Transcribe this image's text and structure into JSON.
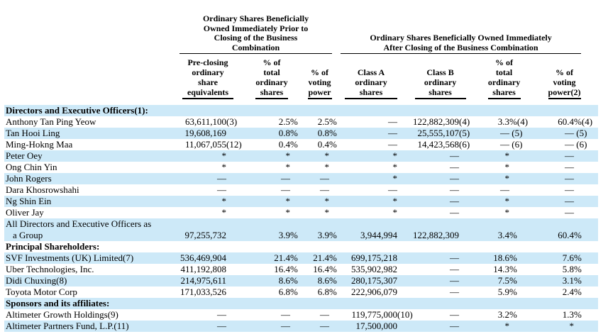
{
  "colors": {
    "row_shade": "#cde9f8",
    "text": "#000000",
    "rule": "#000000"
  },
  "table": {
    "groups": [
      {
        "title": "Ordinary Shares Beneficially\nOwned Immediately Prior to\nClosing of the Business\nCombination",
        "span": 3
      },
      {
        "title": "Ordinary Shares Beneficially Owned Immediately\nAfter Closing of the Business Combination",
        "span": 4
      }
    ],
    "columns": [
      {
        "id": "pre_share_equivalents",
        "label": "Pre-closing\nordinary\nshare\nequivalents"
      },
      {
        "id": "pre_pct_total_shares",
        "label": "% of\ntotal\nordinary\nshares"
      },
      {
        "id": "pre_pct_voting_power",
        "label": "% of\nvoting\npower"
      },
      {
        "id": "class_a_shares",
        "label": "Class A\nordinary\nshares"
      },
      {
        "id": "class_b_shares",
        "label": "Class B\nordinary\nshares"
      },
      {
        "id": "post_pct_total_shares",
        "label": "% of\ntotal\nordinary\nshares"
      },
      {
        "id": "post_pct_voting_power",
        "label": "% of\nvoting\npower(2)"
      }
    ],
    "rows": [
      {
        "type": "section",
        "shaded": true,
        "name": "Directors and Executive Officers(1):"
      },
      {
        "type": "data",
        "shaded": false,
        "name": "Anthony Tan Ping Yeow",
        "cells": [
          [
            "63,611,100",
            "(3)"
          ],
          [
            "2.5",
            "%"
          ],
          [
            "2.5",
            "%"
          ],
          [
            "—",
            ""
          ],
          [
            "122,882,309",
            "(4)"
          ],
          [
            "3.3",
            "%(4)"
          ],
          [
            "60.4",
            "%(4)"
          ]
        ]
      },
      {
        "type": "data",
        "shaded": true,
        "name": "Tan Hooi Ling",
        "cells": [
          [
            "19,608,169",
            ""
          ],
          [
            "0.8",
            "%"
          ],
          [
            "0.8",
            "%"
          ],
          [
            "—",
            ""
          ],
          [
            "25,555,107",
            "(5)"
          ],
          [
            "—",
            " (5)"
          ],
          [
            "—",
            " (5)"
          ]
        ]
      },
      {
        "type": "data",
        "shaded": false,
        "name": "Ming-Hokng Maa",
        "cells": [
          [
            "11,067,055",
            "(12)"
          ],
          [
            "0.4",
            "%"
          ],
          [
            "0.4",
            "%"
          ],
          [
            "—",
            ""
          ],
          [
            "14,423,568",
            "(6)"
          ],
          [
            "—",
            " (6)"
          ],
          [
            "—",
            " (6)"
          ]
        ]
      },
      {
        "type": "data",
        "shaded": true,
        "name": "Peter Oey",
        "cells": [
          [
            "*",
            ""
          ],
          [
            "*",
            ""
          ],
          [
            "*",
            ""
          ],
          [
            "*",
            ""
          ],
          [
            "—",
            ""
          ],
          [
            "*",
            ""
          ],
          [
            "—",
            ""
          ]
        ]
      },
      {
        "type": "data",
        "shaded": false,
        "name": "Ong Chin Yin",
        "cells": [
          [
            "*",
            ""
          ],
          [
            "*",
            ""
          ],
          [
            "*",
            ""
          ],
          [
            "*",
            ""
          ],
          [
            "—",
            ""
          ],
          [
            "*",
            ""
          ],
          [
            "—",
            ""
          ]
        ]
      },
      {
        "type": "data",
        "shaded": true,
        "name": "John Rogers",
        "cells": [
          [
            "—",
            ""
          ],
          [
            "—",
            ""
          ],
          [
            "—",
            ""
          ],
          [
            "*",
            ""
          ],
          [
            "—",
            ""
          ],
          [
            "*",
            ""
          ],
          [
            "—",
            ""
          ]
        ]
      },
      {
        "type": "data",
        "shaded": false,
        "name": "Dara Khosrowshahi",
        "cells": [
          [
            "—",
            ""
          ],
          [
            "—",
            ""
          ],
          [
            "—",
            ""
          ],
          [
            "—",
            ""
          ],
          [
            "—",
            ""
          ],
          [
            "—",
            ""
          ],
          [
            "—",
            ""
          ]
        ]
      },
      {
        "type": "data",
        "shaded": true,
        "name": "Ng Shin Ein",
        "cells": [
          [
            "*",
            ""
          ],
          [
            "*",
            ""
          ],
          [
            "*",
            ""
          ],
          [
            "*",
            ""
          ],
          [
            "—",
            ""
          ],
          [
            "*",
            ""
          ],
          [
            "—",
            ""
          ]
        ]
      },
      {
        "type": "data",
        "shaded": false,
        "name": "Oliver Jay",
        "cells": [
          [
            "*",
            ""
          ],
          [
            "*",
            ""
          ],
          [
            "*",
            ""
          ],
          [
            "*",
            ""
          ],
          [
            "—",
            ""
          ],
          [
            "*",
            ""
          ],
          [
            "—",
            ""
          ]
        ]
      },
      {
        "type": "data",
        "shaded": true,
        "name": "All Directors and Executive Officers as",
        "name2": "a Group",
        "cells": [
          [
            "97,255,732",
            ""
          ],
          [
            "3.9",
            "%"
          ],
          [
            "3.9",
            "%"
          ],
          [
            "3,944,994",
            ""
          ],
          [
            "122,882,309",
            ""
          ],
          [
            "3.4",
            "%"
          ],
          [
            "60.4",
            "%"
          ]
        ]
      },
      {
        "type": "section",
        "shaded": false,
        "name": "Principal Shareholders:"
      },
      {
        "type": "data",
        "shaded": true,
        "name": "SVF Investments (UK) Limited(7)",
        "cells": [
          [
            "536,469,904",
            ""
          ],
          [
            "21.4",
            "%"
          ],
          [
            "21.4",
            "%"
          ],
          [
            "699,175,218",
            ""
          ],
          [
            "—",
            ""
          ],
          [
            "18.6",
            "%"
          ],
          [
            "7.6",
            "%"
          ]
        ]
      },
      {
        "type": "data",
        "shaded": false,
        "name": "Uber Technologies, Inc.",
        "cells": [
          [
            "411,192,808",
            ""
          ],
          [
            "16.4",
            "%"
          ],
          [
            "16.4",
            "%"
          ],
          [
            "535,902,982",
            ""
          ],
          [
            "—",
            ""
          ],
          [
            "14.3",
            "%"
          ],
          [
            "5.8",
            "%"
          ]
        ]
      },
      {
        "type": "data",
        "shaded": true,
        "name": "Didi Chuxing(8)",
        "cells": [
          [
            "214,975,611",
            ""
          ],
          [
            "8.6",
            "%"
          ],
          [
            "8.6",
            "%"
          ],
          [
            "280,175,307",
            ""
          ],
          [
            "—",
            ""
          ],
          [
            "7.5",
            "%"
          ],
          [
            "3.1",
            "%"
          ]
        ]
      },
      {
        "type": "data",
        "shaded": false,
        "name": "Toyota Motor Corp",
        "cells": [
          [
            "171,033,526",
            ""
          ],
          [
            "6.8",
            "%"
          ],
          [
            "6.8",
            "%"
          ],
          [
            "222,906,079",
            ""
          ],
          [
            "—",
            ""
          ],
          [
            "5.9",
            "%"
          ],
          [
            "2.4",
            "%"
          ]
        ]
      },
      {
        "type": "section",
        "shaded": true,
        "name": "Sponsors and its affiliates:"
      },
      {
        "type": "data",
        "shaded": false,
        "name": "Altimeter Growth Holdings(9)",
        "cells": [
          [
            "—",
            ""
          ],
          [
            "—",
            ""
          ],
          [
            "—",
            ""
          ],
          [
            "119,775,000",
            "(10)"
          ],
          [
            "—",
            ""
          ],
          [
            "3.2",
            "%"
          ],
          [
            "1.3",
            "%"
          ]
        ]
      },
      {
        "type": "data",
        "shaded": true,
        "name": "Altimeter Partners Fund, L.P.(11)",
        "cells": [
          [
            "—",
            ""
          ],
          [
            "—",
            ""
          ],
          [
            "—",
            ""
          ],
          [
            "17,500,000",
            ""
          ],
          [
            "—",
            ""
          ],
          [
            "*",
            ""
          ],
          [
            "*",
            ""
          ]
        ]
      }
    ]
  }
}
